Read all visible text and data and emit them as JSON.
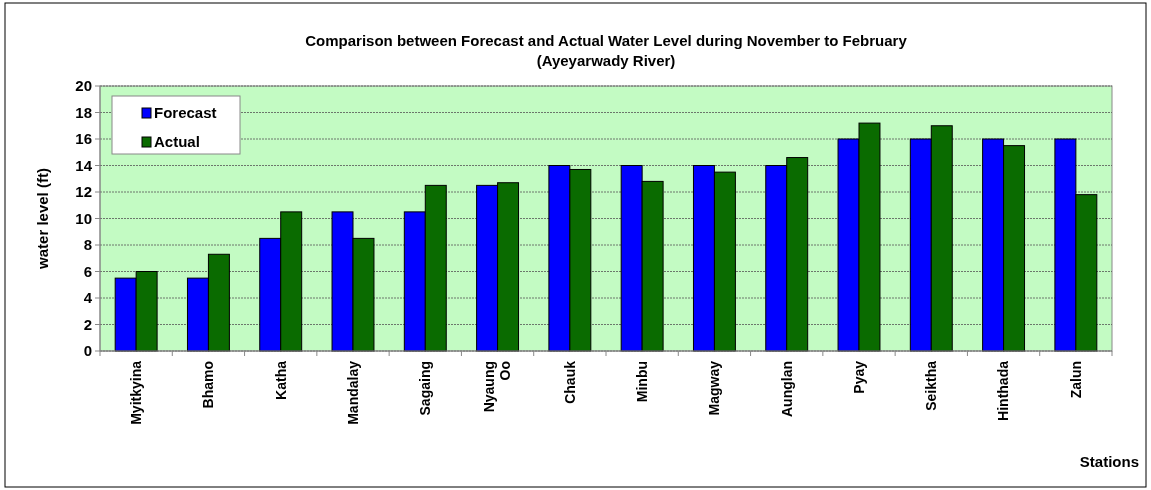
{
  "chart_data": {
    "type": "bar",
    "title": "Comparison between Forecast and Actual Water Level during November to February",
    "subtitle": "(Ayeyarwady River)",
    "xlabel": "Stations",
    "ylabel": "water level (ft)",
    "categories": [
      "Myitkyina",
      "Bhamo",
      "Katha",
      "Mandalay",
      "Sagaing",
      "Nyaung Oo",
      "Chauk",
      "Minbu",
      "Magway",
      "Aunglan",
      "Pyay",
      "Seiktha",
      "Hinthada",
      "Zalun"
    ],
    "series": [
      {
        "name": "Forecast",
        "color": "#0000ff",
        "values": [
          5.5,
          5.5,
          8.5,
          10.5,
          10.5,
          12.5,
          14,
          14,
          14,
          14,
          16,
          16,
          16,
          16
        ]
      },
      {
        "name": "Actual",
        "color": "#0a6b00",
        "values": [
          6,
          7.3,
          10.5,
          8.5,
          12.5,
          12.7,
          13.7,
          12.8,
          13.5,
          14.6,
          17.2,
          17,
          15.5,
          11.8
        ]
      }
    ],
    "ylim": [
      0,
      20
    ],
    "yticks": [
      0,
      2,
      4,
      6,
      8,
      10,
      12,
      14,
      16,
      18,
      20
    ],
    "grid": "y",
    "legend": "top left"
  }
}
